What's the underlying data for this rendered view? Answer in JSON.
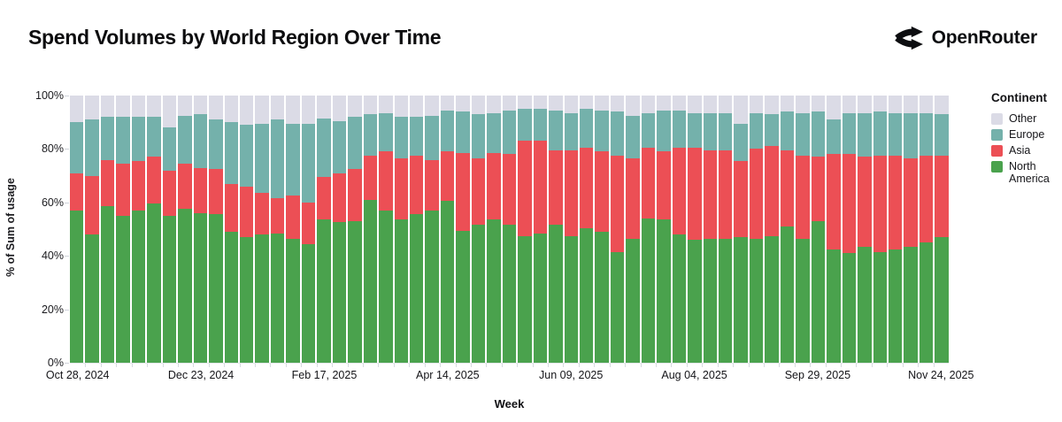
{
  "header": {
    "title": "Spend Volumes by World Region Over Time",
    "brand": {
      "name": "OpenRouter"
    }
  },
  "chart_data": {
    "type": "bar",
    "stacked": true,
    "normalized": true,
    "unit": "%",
    "title": "Spend Volumes by World Region Over Time",
    "xlabel": "Week",
    "ylabel": "% of Sum of usage",
    "ylim": [
      0,
      100
    ],
    "grid": false,
    "y_tick_labels": [
      "0%",
      "20%",
      "40%",
      "60%",
      "80%",
      "100%"
    ],
    "x_tick_labels": [
      "Oct 28, 2024",
      "Dec 23, 2024",
      "Feb 17, 2025",
      "Apr 14, 2025",
      "Jun 09, 2025",
      "Aug 04, 2025",
      "Sep 29, 2025",
      "Nov 24, 2025"
    ],
    "x_tick_bar_indices": [
      0,
      8,
      16,
      24,
      32,
      40,
      48,
      56
    ],
    "weeks_count": 57,
    "legend": {
      "title": "Continent",
      "position": "right",
      "entries": [
        {
          "label": "Other",
          "color": "#dbdbe6"
        },
        {
          "label": "Europe",
          "color": "#74b1ab"
        },
        {
          "label": "Asia",
          "color": "#ec4f55"
        },
        {
          "label": "North America",
          "color": "#4aa24d"
        }
      ]
    },
    "series": [
      {
        "name": "North America",
        "key": "north-america",
        "color": "#4aa24d",
        "values": [
          57,
          48,
          58.5,
          55,
          57,
          59.5,
          55,
          57.5,
          56,
          55.5,
          49,
          47,
          48,
          48.5,
          46.5,
          44.5,
          53.5,
          52.5,
          53,
          61,
          57,
          53.5,
          55.5,
          57,
          60.5,
          49.5,
          51.5,
          53.5,
          51.5,
          47.5,
          48.5,
          51.5,
          47.5,
          50.5,
          49,
          41.5,
          46.5,
          54,
          53.5,
          48,
          46,
          46.5,
          46.5,
          47,
          46.5,
          47.5,
          51,
          46.5,
          53,
          42.5,
          41,
          43.5,
          41.5,
          42.5,
          43.5,
          45,
          47
        ]
      },
      {
        "name": "Asia",
        "key": "asia",
        "color": "#ec4f55",
        "values": [
          14,
          22,
          17.5,
          19.5,
          18.5,
          17.5,
          17,
          17,
          17,
          17,
          18,
          19,
          15.5,
          13,
          16,
          15.5,
          16,
          18.5,
          19.5,
          16.5,
          22,
          23,
          22,
          19,
          18.5,
          29,
          25,
          25,
          26.5,
          35.5,
          34.5,
          28,
          32,
          30,
          30,
          36,
          30,
          26.5,
          25.5,
          32.5,
          34.5,
          33,
          33,
          28.5,
          33.5,
          33.5,
          28.5,
          31,
          24,
          35.5,
          37,
          33.5,
          36,
          35,
          33,
          32.5,
          30.5
        ]
      },
      {
        "name": "Europe",
        "key": "europe",
        "color": "#74b1ab",
        "values": [
          19,
          21,
          16,
          17.5,
          16.5,
          15,
          16,
          18,
          20,
          18.5,
          23,
          23,
          26,
          29.5,
          27,
          29.5,
          22,
          19.5,
          19.5,
          15.5,
          14.5,
          15.5,
          14.5,
          16.5,
          15.5,
          15.5,
          16.5,
          15,
          16.5,
          12,
          12,
          15,
          14,
          14.5,
          15.5,
          16.5,
          16,
          13,
          15.5,
          14,
          13,
          14,
          14,
          14,
          13.5,
          12,
          14.5,
          16,
          17,
          13,
          15.5,
          16.5,
          16.5,
          16,
          17,
          16,
          15.5
        ]
      },
      {
        "name": "Other",
        "key": "other",
        "color": "#dbdbe6",
        "values": [
          10,
          9,
          8,
          8,
          8,
          8,
          12,
          7.5,
          7,
          9,
          10,
          11,
          10.5,
          9,
          10.5,
          10.5,
          8.5,
          9.5,
          8,
          7,
          6.5,
          8,
          8,
          7.5,
          5.5,
          6,
          7,
          6.5,
          5.5,
          5,
          5,
          5.5,
          6.5,
          5,
          5.5,
          6,
          7.5,
          6.5,
          5.5,
          5.5,
          6.5,
          6.5,
          6.5,
          10.5,
          6.5,
          7,
          6,
          6.5,
          6,
          9,
          6.5,
          6.5,
          6,
          6.5,
          6.5,
          6.5,
          7
        ]
      }
    ]
  }
}
